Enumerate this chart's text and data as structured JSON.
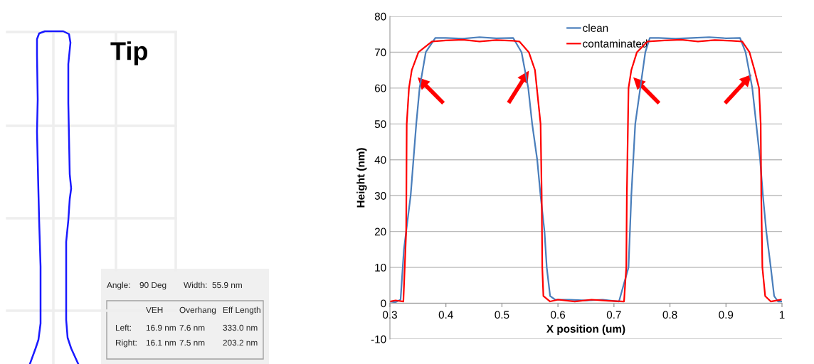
{
  "chart_data": [
    {
      "type": "other",
      "title": "Tip",
      "annotations": [
        "Angle:",
        "90 Deg",
        "Width:  55.9 nm",
        "VEH",
        "Overhang",
        "Eff Length",
        "Left:",
        "16.9 nm",
        "7.6 nm",
        "333.0 nm",
        "Right:",
        "16.1 nm",
        "7.5 nm",
        "203.2 nm"
      ]
    },
    {
      "type": "line",
      "xlabel": "X position (um)",
      "ylabel": "Height (nm)",
      "xlim": [
        0.3,
        1
      ],
      "ylim": [
        -10,
        80
      ],
      "xticks": [
        0.3,
        0.4,
        0.5,
        0.6,
        0.7,
        0.8,
        0.9,
        {
          "value": 1,
          "label": "1"
        }
      ],
      "yticks": [
        -10,
        0,
        10,
        20,
        30,
        40,
        50,
        60,
        70,
        80
      ],
      "grid": "y",
      "legend": "top",
      "line_style": "solid",
      "marker": "none",
      "series": [
        {
          "name": "clean",
          "color": "#4a7ebb",
          "x": [
            0.3,
            0.31,
            0.319,
            0.325,
            0.337,
            0.347,
            0.353,
            0.364,
            0.381,
            0.4,
            0.43,
            0.46,
            0.49,
            0.52,
            0.535,
            0.547,
            0.554,
            0.563,
            0.569,
            0.576,
            0.58,
            0.586,
            0.595,
            0.62,
            0.65,
            0.68,
            0.709,
            0.726,
            0.731,
            0.738,
            0.747,
            0.756,
            0.764,
            0.78,
            0.81,
            0.84,
            0.87,
            0.9,
            0.925,
            0.935,
            0.947,
            0.954,
            0.961,
            0.966,
            0.972,
            0.98,
            0.986,
            0.993,
            1
          ],
          "values": [
            0.5,
            0.3,
            1,
            15,
            30,
            50,
            60,
            70,
            74,
            74,
            73.8,
            74.2,
            73.9,
            74,
            70,
            60,
            50,
            40,
            30,
            20,
            10,
            2,
            1,
            1,
            0.8,
            1,
            0.5,
            10,
            30,
            50,
            60,
            70,
            74,
            74,
            73.8,
            74,
            74.2,
            73.9,
            74,
            70,
            60,
            50,
            40,
            30,
            20,
            10,
            2,
            0.5,
            0.5
          ]
        },
        {
          "name": "contaminated",
          "color": "#ff0000",
          "x": [
            0.3,
            0.31,
            0.324,
            0.329,
            0.33,
            0.334,
            0.339,
            0.351,
            0.375,
            0.4,
            0.43,
            0.46,
            0.49,
            0.52,
            0.531,
            0.548,
            0.559,
            0.569,
            0.571,
            0.572,
            0.574,
            0.586,
            0.6,
            0.63,
            0.66,
            0.69,
            0.718,
            0.722,
            0.723,
            0.726,
            0.731,
            0.741,
            0.76,
            0.79,
            0.82,
            0.85,
            0.88,
            0.91,
            0.929,
            0.942,
            0.951,
            0.959,
            0.962,
            0.963,
            0.965,
            0.97,
            0.98,
            0.998
          ],
          "values": [
            0.5,
            0.8,
            0.5,
            20,
            50,
            60,
            65,
            70,
            73,
            73.3,
            73.5,
            73,
            73.4,
            73.2,
            73,
            70,
            65,
            50,
            30,
            10,
            2,
            0.5,
            1,
            0.5,
            1,
            0.7,
            0.5,
            10,
            30,
            60,
            65,
            70,
            73,
            73.3,
            73.5,
            73,
            73.4,
            73.2,
            73,
            70,
            65,
            60,
            50,
            30,
            10,
            2,
            0.5,
            1
          ]
        }
      ]
    }
  ]
}
